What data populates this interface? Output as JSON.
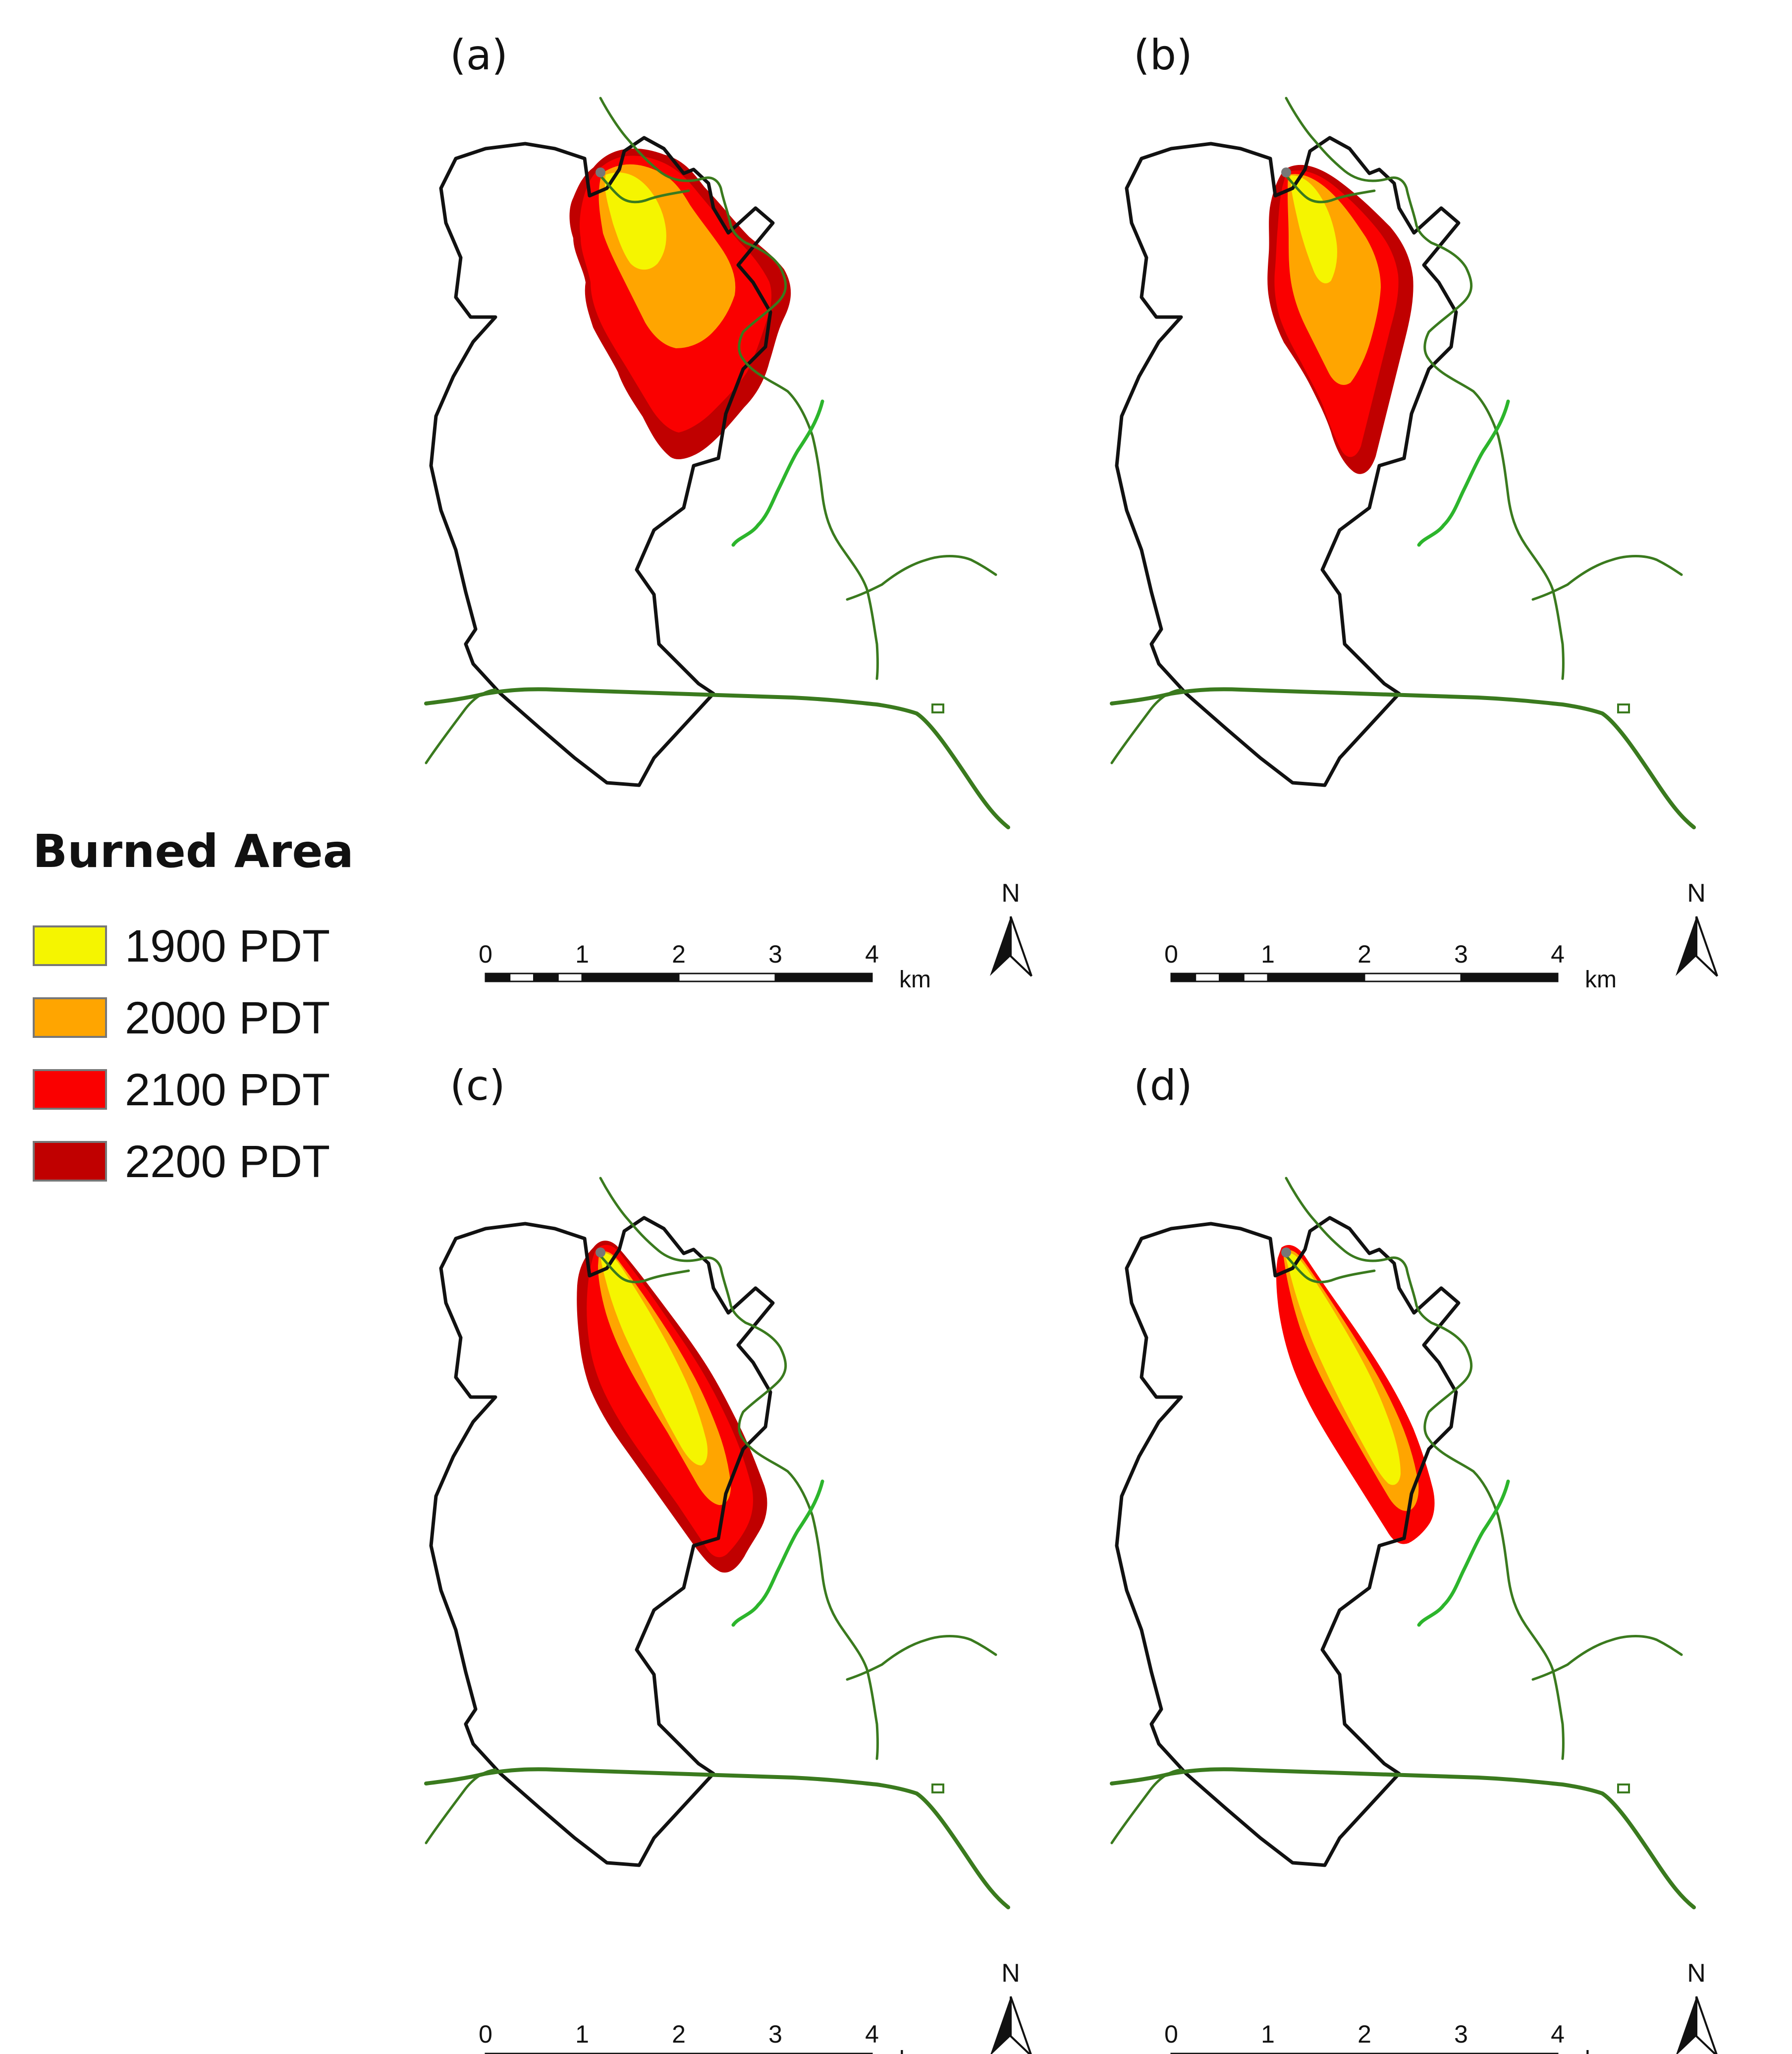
{
  "legend": {
    "title": "Burned Area",
    "items": [
      {
        "label": "1900 PDT",
        "color": "#f5f500"
      },
      {
        "label": "2000 PDT",
        "color": "#ffa500"
      },
      {
        "label": "2100 PDT",
        "color": "#fa0000"
      },
      {
        "label": "2200 PDT",
        "color": "#c00000"
      }
    ]
  },
  "panels": [
    {
      "label": "(a)",
      "fire_shape": "broad"
    },
    {
      "label": "(b)",
      "fire_shape": "medium"
    },
    {
      "label": "(c)",
      "fire_shape": "elongated"
    },
    {
      "label": "(d)",
      "fire_shape": "narrow"
    }
  ],
  "scale_bar": {
    "ticks": [
      "0",
      "1",
      "2",
      "3",
      "4"
    ],
    "unit": "km"
  },
  "north_arrow": {
    "label": "N"
  },
  "colors": {
    "boundary": "#111111",
    "road": "#3a7a1e",
    "road_highlight": "#2cb52c"
  }
}
